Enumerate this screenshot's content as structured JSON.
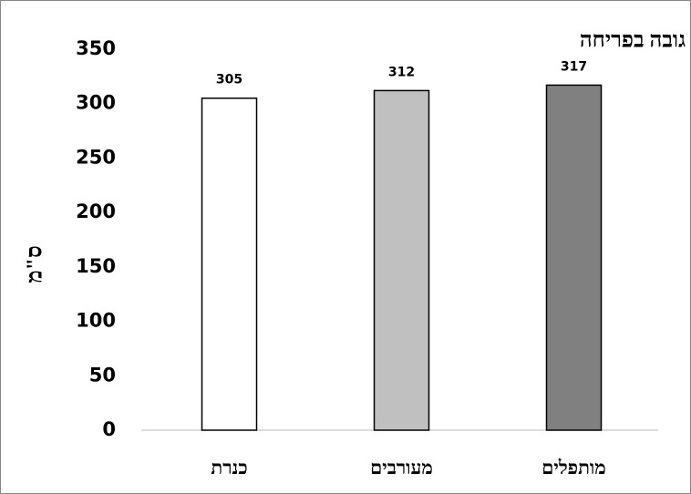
{
  "chart_data": {
    "type": "bar",
    "title": "גובה בפריחה",
    "y_label": "ס\"מ",
    "categories": [
      "כנרת",
      "מעורבים",
      "מותפלים"
    ],
    "values": [
      305,
      312,
      317
    ],
    "colors": [
      "#ffffff",
      "#c0c0c0",
      "#808080"
    ],
    "ylim": [
      0,
      350
    ],
    "yticks": [
      0,
      50,
      100,
      150,
      200,
      250,
      300,
      350
    ],
    "grid": false
  }
}
